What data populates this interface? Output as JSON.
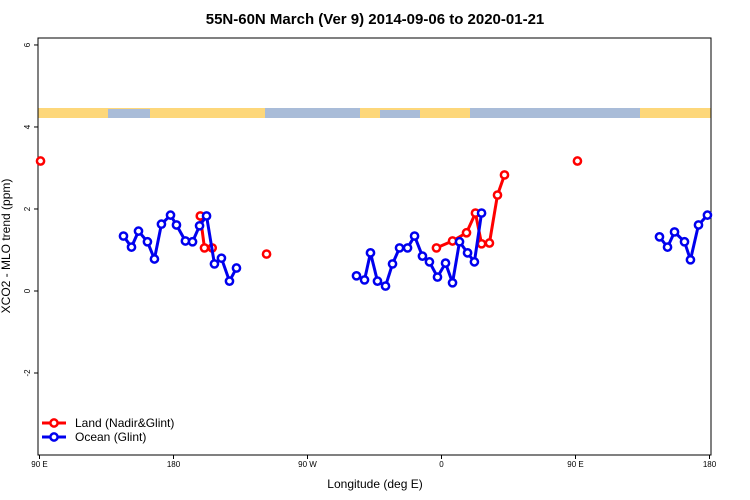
{
  "chart_data": {
    "type": "line",
    "title": "55N-60N March (Ver 9)   2014-09-06 to 2020-01-21",
    "x_label": "Longitude (deg E)",
    "y_label": "XCO2 - MLO trend (ppm)",
    "xlim": [
      89,
      541
    ],
    "ylim": [
      -4.0,
      6.17
    ],
    "xticks": [
      {
        "value": 90,
        "label": "90 E"
      },
      180,
      {
        "value": 270,
        "label": "90 W"
      },
      {
        "value": 360,
        "label": "0"
      },
      {
        "value": 450,
        "label": "90 E"
      },
      {
        "value": 540,
        "label": "180"
      }
    ],
    "yticks": [
      -2,
      0,
      2,
      4,
      6
    ],
    "grid": false,
    "legend": "bottom-left",
    "series": [
      {
        "name": "Land (Nadir&Glint)",
        "color": "#ff0000",
        "x": [
          90.7,
          198,
          200.8,
          206,
          242.5,
          356.6,
          367.4,
          376.8,
          382.8,
          386.9,
          392.2,
          397.6,
          402.3,
          451.3
        ],
        "values": [
          3.17,
          1.83,
          1.05,
          1.05,
          0.9,
          1.05,
          1.22,
          1.42,
          1.9,
          1.15,
          1.17,
          2.34,
          2.83,
          3.17
        ]
      },
      {
        "name": "Ocean (Glint)",
        "color": "#0000ee",
        "x": [
          146.4,
          151.8,
          156.5,
          162.5,
          167.2,
          171.9,
          178,
          182,
          188,
          192.8,
          197.5,
          202.2,
          207.5,
          212.2,
          217.6,
          222.3,
          302.9,
          308.3,
          312.3,
          317,
          322.4,
          327.1,
          331.8,
          337.2,
          341.9,
          347.2,
          351.9,
          357.3,
          362.7,
          367.4,
          372.1,
          377.5,
          382.1,
          386.9,
          506.4,
          511.8,
          516.5,
          523.2,
          527.2,
          532.6,
          538.6
        ],
        "values": [
          1.34,
          1.07,
          1.46,
          1.2,
          0.78,
          1.63,
          1.85,
          1.61,
          1.22,
          1.2,
          1.59,
          1.83,
          0.66,
          0.8,
          0.24,
          0.56,
          0.37,
          0.27,
          0.93,
          0.24,
          0.12,
          0.66,
          1.05,
          1.05,
          1.34,
          0.85,
          0.71,
          0.34,
          0.68,
          0.2,
          1.2,
          0.93,
          0.71,
          1.9,
          1.32,
          1.07,
          1.44,
          1.2,
          0.76,
          1.61,
          1.85
        ]
      }
    ]
  }
}
